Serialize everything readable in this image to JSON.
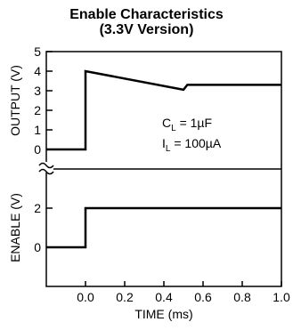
{
  "chart_data": {
    "type": "line",
    "title": "Enable Characteristics",
    "subtitle": "(3.3V Version)",
    "xlabel": "TIME (ms)",
    "xlim": [
      -0.2,
      1.0
    ],
    "x_ticks": [
      "0.0",
      "0.2",
      "0.4",
      "0.6",
      "0.8",
      "1.0"
    ],
    "x_tick_values": [
      0.0,
      0.2,
      0.4,
      0.6,
      0.8,
      1.0
    ],
    "grid": false,
    "panels": [
      {
        "ylabel": "OUTPUT (V)",
        "ylim": [
          0,
          5
        ],
        "y_ticks": [
          "0",
          "1",
          "2",
          "3",
          "4",
          "5"
        ],
        "y_tick_values": [
          0,
          1,
          2,
          3,
          4,
          5
        ],
        "series": [
          {
            "x": [
              -0.2,
              0.0,
              0.0,
              0.5,
              0.52,
              1.0
            ],
            "y": [
              0,
              0,
              4.0,
              3.05,
              3.3,
              3.3
            ]
          }
        ]
      },
      {
        "ylabel": "ENABLE (V)",
        "ylim": [
          -1,
          3
        ],
        "y_ticks": [
          "0",
          "2"
        ],
        "y_tick_values": [
          0,
          2
        ],
        "series": [
          {
            "x": [
              -0.2,
              0.0,
              0.0,
              1.0
            ],
            "y": [
              0,
              0,
              2,
              2
            ]
          }
        ]
      }
    ],
    "annotations": [
      {
        "text_main": "C",
        "text_sub": "L",
        "text_rest": " = 1µF"
      },
      {
        "text_main": "I",
        "text_sub": "L",
        "text_rest": " = 100µA"
      }
    ]
  }
}
